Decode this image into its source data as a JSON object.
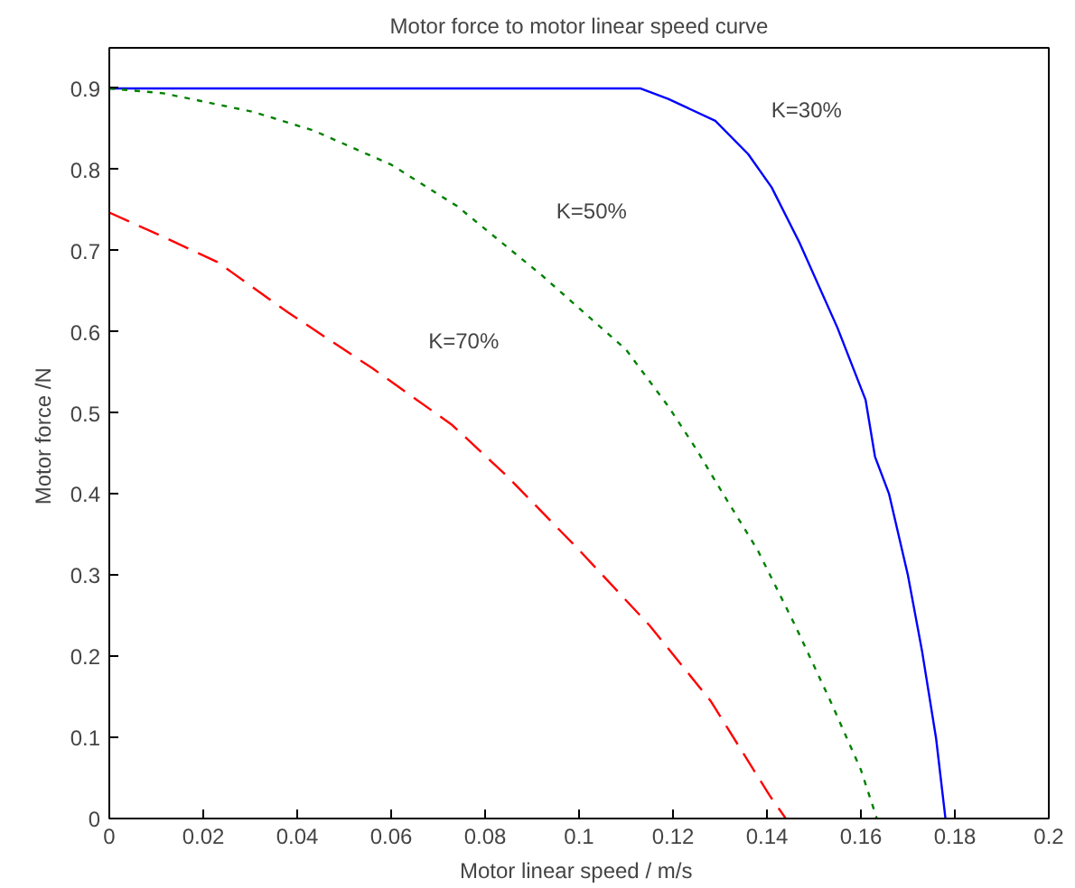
{
  "chart_data": {
    "type": "line",
    "title": "Motor force to motor linear speed curve",
    "xlabel": "Motor linear speed  / m/s",
    "ylabel": "Motor force  /N",
    "xlim": [
      0,
      0.2
    ],
    "ylim": [
      0,
      0.95
    ],
    "xticks": [
      0,
      0.02,
      0.04,
      0.06,
      0.08,
      0.1,
      0.12,
      0.14,
      0.16,
      0.18,
      0.2
    ],
    "yticks": [
      0,
      0.1,
      0.2,
      0.3,
      0.4,
      0.5,
      0.6,
      0.7,
      0.8,
      0.9
    ],
    "grid": false,
    "marker": "none",
    "series": [
      {
        "name": "K=30%",
        "color": "#0000ff",
        "line_style": "solid",
        "x": [
          0,
          0.113,
          0.119,
          0.129,
          0.136,
          0.141,
          0.147,
          0.155,
          0.161,
          0.163,
          0.166,
          0.17,
          0.173,
          0.176,
          0.178
        ],
        "values": [
          0.9,
          0.9,
          0.887,
          0.86,
          0.819,
          0.778,
          0.709,
          0.605,
          0.516,
          0.446,
          0.4,
          0.3,
          0.207,
          0.099,
          0
        ]
      },
      {
        "name": "K=50%",
        "color": "#008000",
        "line_style": "dotted",
        "x": [
          0,
          0.0115,
          0.0307,
          0.0435,
          0.06,
          0.074,
          0.092,
          0.11,
          0.119,
          0.125,
          0.129,
          0.138,
          0.146,
          0.1535,
          0.16,
          0.1634
        ],
        "values": [
          0.9,
          0.894,
          0.871,
          0.848,
          0.806,
          0.755,
          0.67,
          0.578,
          0.508,
          0.455,
          0.416,
          0.331,
          0.238,
          0.145,
          0.06,
          0
        ]
      },
      {
        "name": "K=70%",
        "color": "#ff0000",
        "line_style": "dashed",
        "x": [
          0,
          0.0115,
          0.023,
          0.038,
          0.056,
          0.073,
          0.0845,
          0.1,
          0.115,
          0.128,
          0.1405,
          0.144
        ],
        "values": [
          0.747,
          0.717,
          0.686,
          0.624,
          0.555,
          0.485,
          0.423,
          0.331,
          0.238,
          0.145,
          0.029,
          0
        ]
      }
    ]
  }
}
